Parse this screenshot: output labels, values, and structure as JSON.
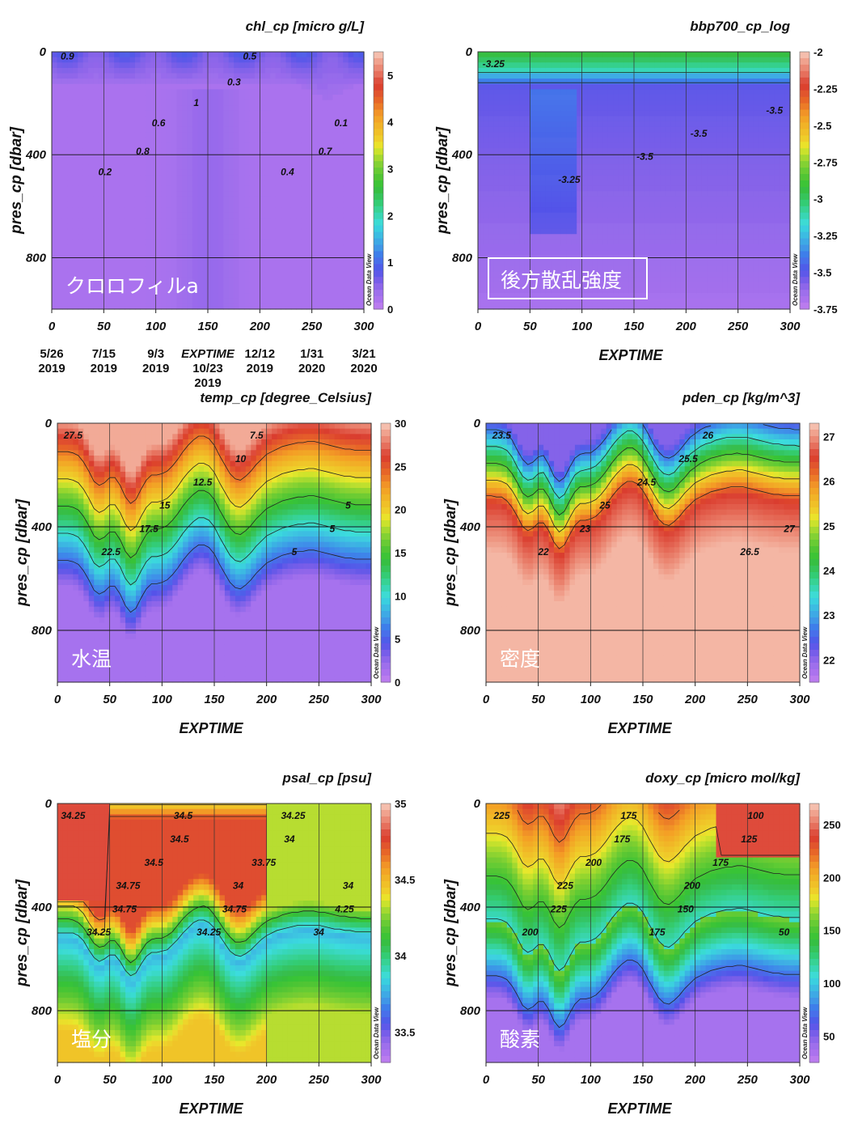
{
  "chart_data": [
    {
      "type": "heatmap",
      "title": "chl_cp [micro g/L]",
      "ylabel": "pres_cp [dbar]",
      "xlabel": "",
      "xlim": [
        0,
        300
      ],
      "ylim": [
        1000,
        0
      ],
      "xticks": [
        0,
        50,
        100,
        150,
        200,
        250,
        300
      ],
      "yticks": [
        0,
        400,
        800
      ],
      "colorbar": {
        "ticks": [
          "0",
          "1",
          "2",
          "3",
          "4",
          "5"
        ],
        "range": [
          0,
          5.5
        ],
        "credit": "Ocean Data View"
      },
      "label": "クロロフィルa",
      "contour_labels": [
        "0.9",
        "0.2",
        "0.8",
        "0.6",
        "1",
        "0.3",
        "0.5",
        "0.4",
        "0.7",
        "0.1"
      ],
      "date_ticks": [
        {
          "date": "5/26",
          "year": "2019"
        },
        {
          "date": "7/15",
          "year": "2019"
        },
        {
          "date": "9/3",
          "year": "2019"
        },
        {
          "date": "EXPTIME",
          "year": ""
        },
        {
          "date": "12/12",
          "year": "2019"
        },
        {
          "date": "1/31",
          "year": "2020"
        },
        {
          "date": "3/21",
          "year": "2020"
        }
      ],
      "date_mid": {
        "date": "10/23",
        "year": "2019"
      },
      "profile": {
        "surface_max": 1.0,
        "chl_layer_bottom_dbar": 150,
        "background": 0.05
      }
    },
    {
      "type": "heatmap",
      "title": "bbp700_cp_log",
      "ylabel": "pres_cp [dbar]",
      "xlabel": "EXPTIME",
      "xlim": [
        0,
        300
      ],
      "ylim": [
        1000,
        0
      ],
      "xticks": [
        0,
        50,
        100,
        150,
        200,
        250,
        300
      ],
      "yticks": [
        0,
        400,
        800
      ],
      "colorbar": {
        "ticks": [
          "-2",
          "-2.25",
          "-2.5",
          "-2.75",
          "-3",
          "-3.25",
          "-3.5",
          "-3.75"
        ],
        "range": [
          -3.75,
          -2
        ],
        "credit": "Ocean Data View"
      },
      "label": "後方散乱強度",
      "contour_labels": [
        "-3.25",
        "-3.25",
        "-3.5",
        "-3.5",
        "-3.5"
      ]
    },
    {
      "type": "heatmap",
      "title": "temp_cp [degree_Celsius]",
      "ylabel": "pres_cp [dbar]",
      "xlabel": "EXPTIME",
      "xlim": [
        0,
        300
      ],
      "ylim": [
        1000,
        0
      ],
      "xticks": [
        0,
        50,
        100,
        150,
        200,
        250,
        300
      ],
      "yticks": [
        0,
        400,
        800
      ],
      "colorbar": {
        "ticks": [
          "0",
          "5",
          "10",
          "15",
          "20",
          "25",
          "30"
        ],
        "range": [
          0,
          30
        ],
        "credit": "Ocean Data View"
      },
      "label": "水温",
      "contour_labels": [
        "27.5",
        "22.5",
        "17.5",
        "15",
        "12.5",
        "10",
        "7.5",
        "5",
        "5",
        "5"
      ]
    },
    {
      "type": "heatmap",
      "title": "pden_cp [kg/m^3]",
      "ylabel": "pres_cp [dbar]",
      "xlabel": "EXPTIME",
      "xlim": [
        0,
        300
      ],
      "ylim": [
        1000,
        0
      ],
      "xticks": [
        0,
        50,
        100,
        150,
        200,
        250,
        300
      ],
      "yticks": [
        0,
        400,
        800
      ],
      "colorbar": {
        "ticks": [
          "22",
          "23",
          "24",
          "25",
          "26",
          "27"
        ],
        "range": [
          21.5,
          27.3
        ],
        "credit": "Ocean Data View"
      },
      "label": "密度",
      "contour_labels": [
        "23.5",
        "22",
        "23",
        "25",
        "24.5",
        "25.5",
        "26",
        "26.5",
        "27"
      ]
    },
    {
      "type": "heatmap",
      "title": "psal_cp [psu]",
      "ylabel": "pres_cp [dbar]",
      "xlabel": "EXPTIME",
      "xlim": [
        0,
        300
      ],
      "ylim": [
        1000,
        0
      ],
      "xticks": [
        0,
        50,
        100,
        150,
        200,
        250,
        300
      ],
      "yticks": [
        0,
        400,
        800
      ],
      "colorbar": {
        "ticks": [
          "33.5",
          "34",
          "34.5",
          "35"
        ],
        "range": [
          33.3,
          35
        ],
        "credit": "Ocean Data View"
      },
      "label": "塩分",
      "contour_labels": [
        "34.25",
        "34.25",
        "34.75",
        "34.75",
        "34.5",
        "34.5",
        "34.5",
        "34.25",
        "34.75",
        "34",
        "33.75",
        "34",
        "34.25",
        "34",
        "4.25",
        "34"
      ]
    },
    {
      "type": "heatmap",
      "title": "doxy_cp [micro mol/kg]",
      "ylabel": "pres_cp [dbar]",
      "xlabel": "EXPTIME",
      "xlim": [
        0,
        300
      ],
      "ylim": [
        1000,
        0
      ],
      "xticks": [
        0,
        50,
        100,
        150,
        200,
        250,
        300
      ],
      "yticks": [
        0,
        400,
        800
      ],
      "colorbar": {
        "ticks": [
          "50",
          "100",
          "150",
          "200",
          "250"
        ],
        "range": [
          25,
          270
        ],
        "credit": "Ocean Data View"
      },
      "label": "酸素",
      "contour_labels": [
        "225",
        "200",
        "225",
        "225",
        "200",
        "175",
        "175",
        "175",
        "150",
        "200",
        "175",
        "125",
        "100",
        "50"
      ]
    }
  ]
}
